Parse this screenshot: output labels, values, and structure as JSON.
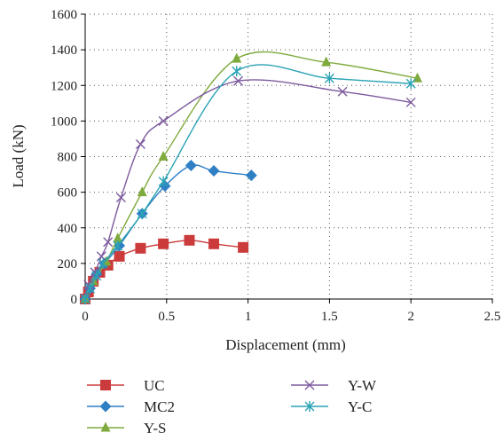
{
  "chart_data": {
    "type": "line",
    "xlabel": "Displacement (mm)",
    "ylabel": "Load (kN)",
    "xlim": [
      0,
      2.5
    ],
    "ylim": [
      0,
      1600
    ],
    "xticks": [
      "0",
      "0.5",
      "1",
      "1.5",
      "2",
      "2.5"
    ],
    "yticks": [
      "0",
      "200",
      "400",
      "600",
      "800",
      "1000",
      "1200",
      "1400",
      "1600"
    ],
    "grid": true,
    "legend_position": "bottom",
    "series": [
      {
        "name": "UC",
        "color": "#cc3b3b",
        "marker": "square",
        "x": [
          0,
          0.02,
          0.05,
          0.09,
          0.14,
          0.21,
          0.34,
          0.48,
          0.64,
          0.79,
          0.97
        ],
        "y": [
          0,
          40,
          100,
          150,
          190,
          240,
          285,
          310,
          330,
          310,
          290
        ]
      },
      {
        "name": "MC2",
        "color": "#2f7fc4",
        "marker": "diamond",
        "x": [
          0,
          0.03,
          0.07,
          0.12,
          0.21,
          0.35,
          0.49,
          0.65,
          0.79,
          1.02
        ],
        "y": [
          0,
          60,
          140,
          200,
          300,
          480,
          635,
          750,
          720,
          695
        ]
      },
      {
        "name": "Y-S",
        "color": "#7faa3e",
        "marker": "triangle",
        "x": [
          0,
          0.05,
          0.13,
          0.2,
          0.35,
          0.48,
          0.93,
          1.48,
          2.04
        ],
        "y": [
          0,
          100,
          210,
          340,
          600,
          800,
          1350,
          1330,
          1240
        ]
      },
      {
        "name": "Y-W",
        "color": "#7d5a9e",
        "marker": "x",
        "x": [
          0,
          0.02,
          0.06,
          0.1,
          0.14,
          0.22,
          0.34,
          0.48,
          0.94,
          1.58,
          2.0
        ],
        "y": [
          0,
          80,
          150,
          240,
          320,
          570,
          870,
          1000,
          1225,
          1165,
          1105
        ]
      },
      {
        "name": "Y-C",
        "color": "#2aa3b5",
        "marker": "asterisk",
        "x": [
          0,
          0.03,
          0.07,
          0.11,
          0.2,
          0.35,
          0.48,
          0.93,
          1.5,
          2.0
        ],
        "y": [
          0,
          60,
          130,
          200,
          300,
          480,
          660,
          1280,
          1240,
          1210
        ]
      }
    ]
  }
}
